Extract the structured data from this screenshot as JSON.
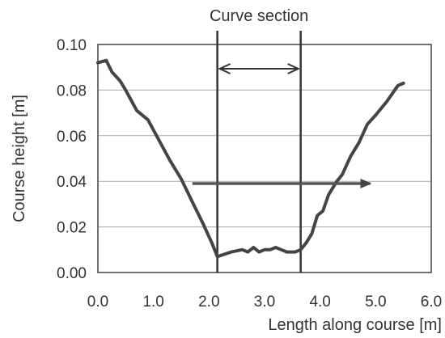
{
  "chart_data": {
    "type": "line",
    "xlabel": "Length along course [m]",
    "ylabel": "Course height [m]",
    "xlim": [
      0,
      6
    ],
    "ylim": [
      0,
      0.1
    ],
    "x_ticks": [
      "0.0",
      "1.0",
      "2.0",
      "3.0",
      "4.0",
      "5.0",
      "6.0"
    ],
    "y_ticks": [
      "0.00",
      "0.02",
      "0.04",
      "0.06",
      "0.08",
      "0.10"
    ],
    "grid": "horizontal",
    "series": [
      {
        "color": "#444444",
        "x": [
          0.0,
          0.15,
          0.25,
          0.4,
          0.5,
          0.7,
          0.9,
          1.1,
          1.3,
          1.5,
          1.7,
          1.9,
          2.05,
          2.15,
          2.4,
          2.6,
          2.7,
          2.8,
          2.9,
          3.0,
          3.1,
          3.2,
          3.3,
          3.4,
          3.55,
          3.65,
          3.75,
          3.85,
          3.95,
          4.05,
          4.15,
          4.3,
          4.4,
          4.55,
          4.7,
          4.85,
          5.0,
          5.2,
          5.4,
          5.5
        ],
        "y": [
          0.092,
          0.093,
          0.088,
          0.084,
          0.08,
          0.071,
          0.067,
          0.058,
          0.049,
          0.041,
          0.031,
          0.021,
          0.013,
          0.007,
          0.009,
          0.01,
          0.009,
          0.011,
          0.009,
          0.01,
          0.01,
          0.011,
          0.01,
          0.009,
          0.009,
          0.01,
          0.013,
          0.017,
          0.025,
          0.027,
          0.034,
          0.04,
          0.043,
          0.051,
          0.057,
          0.065,
          0.069,
          0.075,
          0.082,
          0.083
        ]
      }
    ],
    "annotations": {
      "curve_section": {
        "label": "Curve section",
        "x_start": 2.15,
        "x_end": 3.65
      },
      "direction_arrow": {
        "x_start": 1.7,
        "x_end": 4.9,
        "y": 0.039,
        "color": "#555555"
      }
    }
  }
}
